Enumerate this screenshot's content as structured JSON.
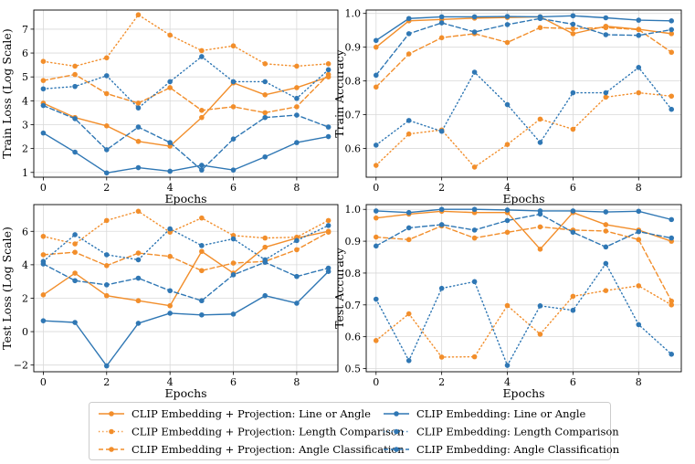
{
  "colors": {
    "orange": "#f28e2b",
    "blue": "#2f77b4",
    "grid": "#d9d9d9"
  },
  "chart_data": [
    {
      "type": "line",
      "id": "train-loss",
      "xlabel": "Epochs",
      "ylabel": "Train Loss (Log Scale)",
      "xlim": [
        -0.3,
        9.3
      ],
      "ylim": [
        0.8,
        7.8
      ],
      "xticks": [
        "0",
        "2",
        "4",
        "6",
        "8"
      ],
      "yticks": [
        "1",
        "2",
        "3",
        "4",
        "5",
        "6",
        "7"
      ],
      "x": [
        0,
        1,
        2,
        3,
        4,
        5,
        6,
        7,
        8,
        9
      ],
      "series": [
        {
          "name": "CLIP Embedding + Projection: Line or Angle",
          "color": "orange",
          "style": "solid",
          "values": [
            3.9,
            3.3,
            2.95,
            2.3,
            2.1,
            3.3,
            4.75,
            4.25,
            4.55,
            5.0
          ]
        },
        {
          "name": "CLIP Embedding + Projection: Length Comparison",
          "color": "orange",
          "style": "dotted",
          "values": [
            5.65,
            5.45,
            5.8,
            7.6,
            6.75,
            6.1,
            6.3,
            5.55,
            5.45,
            5.55
          ]
        },
        {
          "name": "CLIP Embedding + Projection: Angle Classification",
          "color": "orange",
          "style": "dashed",
          "values": [
            4.85,
            5.1,
            4.3,
            3.9,
            4.55,
            3.6,
            3.75,
            3.5,
            3.75,
            5.1
          ]
        },
        {
          "name": "CLIP Embedding: Line or Angle",
          "color": "blue",
          "style": "solid",
          "values": [
            2.65,
            1.85,
            0.98,
            1.2,
            1.05,
            1.3,
            1.1,
            1.65,
            2.25,
            2.5
          ]
        },
        {
          "name": "CLIP Embedding: Length Comparison",
          "color": "blue",
          "style": "dotted",
          "values": [
            4.5,
            4.6,
            5.05,
            3.7,
            4.8,
            5.85,
            4.8,
            4.8,
            4.1,
            5.3
          ]
        },
        {
          "name": "CLIP Embedding: Angle Classification",
          "color": "blue",
          "style": "dashed",
          "values": [
            3.8,
            3.25,
            1.95,
            2.9,
            2.25,
            1.1,
            2.4,
            3.3,
            3.4,
            2.9
          ]
        }
      ]
    },
    {
      "type": "line",
      "id": "train-accuracy",
      "xlabel": "Epochs",
      "ylabel": "Train Accuracy",
      "xlim": [
        -0.3,
        9.3
      ],
      "ylim": [
        0.515,
        1.01
      ],
      "xticks": [
        "0",
        "2",
        "4",
        "6",
        "8"
      ],
      "yticks": [
        "0.6",
        "0.7",
        "0.8",
        "0.9",
        "1.0"
      ],
      "x": [
        0,
        1,
        2,
        3,
        4,
        5,
        6,
        7,
        8,
        9
      ],
      "series": [
        {
          "name": "CLIP Embedding + Projection: Line or Angle",
          "color": "orange",
          "style": "solid",
          "values": [
            0.9,
            0.978,
            0.982,
            0.986,
            0.988,
            0.99,
            0.94,
            0.962,
            0.953,
            0.94
          ]
        },
        {
          "name": "CLIP Embedding + Projection: Length Comparison",
          "color": "orange",
          "style": "dotted",
          "values": [
            0.55,
            0.643,
            0.655,
            0.545,
            0.612,
            0.687,
            0.657,
            0.752,
            0.765,
            0.755
          ]
        },
        {
          "name": "CLIP Embedding + Projection: Angle Classification",
          "color": "orange",
          "style": "dashed",
          "values": [
            0.782,
            0.88,
            0.928,
            0.94,
            0.914,
            0.958,
            0.955,
            0.958,
            0.952,
            0.885
          ]
        },
        {
          "name": "CLIP Embedding: Line or Angle",
          "color": "blue",
          "style": "solid",
          "values": [
            0.92,
            0.985,
            0.99,
            0.99,
            0.991,
            0.99,
            0.993,
            0.987,
            0.98,
            0.978
          ]
        },
        {
          "name": "CLIP Embedding: Length Comparison",
          "color": "blue",
          "style": "dotted",
          "values": [
            0.61,
            0.683,
            0.651,
            0.826,
            0.73,
            0.618,
            0.765,
            0.765,
            0.84,
            0.716
          ]
        },
        {
          "name": "CLIP Embedding: Angle Classification",
          "color": "blue",
          "style": "dashed",
          "values": [
            0.817,
            0.94,
            0.972,
            0.945,
            0.967,
            0.985,
            0.968,
            0.937,
            0.935,
            0.952
          ]
        }
      ]
    },
    {
      "type": "line",
      "id": "test-loss",
      "xlabel": "Epochs",
      "ylabel": "Test Loss (Log Scale)",
      "xlim": [
        -0.3,
        9.3
      ],
      "ylim": [
        -2.4,
        7.6
      ],
      "xticks": [
        "0",
        "2",
        "4",
        "6",
        "8"
      ],
      "yticks": [
        "−2",
        "0",
        "2",
        "4",
        "6"
      ],
      "x": [
        0,
        1,
        2,
        3,
        4,
        5,
        6,
        7,
        8,
        9
      ],
      "series": [
        {
          "name": "CLIP Embedding + Projection: Line or Angle",
          "color": "orange",
          "style": "solid",
          "values": [
            2.2,
            3.5,
            2.15,
            1.85,
            1.55,
            4.8,
            3.5,
            5.05,
            5.6,
            6.0
          ]
        },
        {
          "name": "CLIP Embedding + Projection: Length Comparison",
          "color": "orange",
          "style": "dotted",
          "values": [
            5.7,
            5.25,
            6.65,
            7.2,
            5.95,
            6.8,
            5.75,
            5.6,
            5.65,
            6.65
          ]
        },
        {
          "name": "CLIP Embedding + Projection: Angle Classification",
          "color": "orange",
          "style": "dashed",
          "values": [
            4.6,
            4.75,
            3.95,
            4.7,
            4.5,
            3.65,
            4.1,
            4.2,
            4.9,
            5.95
          ]
        },
        {
          "name": "CLIP Embedding: Line or Angle",
          "color": "blue",
          "style": "solid",
          "values": [
            0.65,
            0.55,
            -2.05,
            0.5,
            1.1,
            1.0,
            1.05,
            2.15,
            1.7,
            3.6
          ]
        },
        {
          "name": "CLIP Embedding: Length Comparison",
          "color": "blue",
          "style": "dotted",
          "values": [
            4.2,
            5.8,
            4.6,
            4.3,
            6.15,
            5.15,
            5.55,
            4.3,
            5.45,
            6.35
          ]
        },
        {
          "name": "CLIP Embedding: Angle Classification",
          "color": "blue",
          "style": "dashed",
          "values": [
            4.05,
            3.05,
            2.8,
            3.2,
            2.45,
            1.85,
            3.4,
            4.15,
            3.3,
            3.8
          ]
        }
      ]
    },
    {
      "type": "line",
      "id": "test-accuracy",
      "xlabel": "Epochs",
      "ylabel": "Test Accuracy",
      "xlim": [
        -0.3,
        9.3
      ],
      "ylim": [
        0.49,
        1.015
      ],
      "xticks": [
        "0",
        "2",
        "4",
        "6",
        "8"
      ],
      "yticks": [
        "0.5",
        "0.6",
        "0.7",
        "0.8",
        "0.9",
        "1.0"
      ],
      "x": [
        0,
        1,
        2,
        3,
        4,
        5,
        6,
        7,
        8,
        9
      ],
      "series": [
        {
          "name": "CLIP Embedding + Projection: Line or Angle",
          "color": "orange",
          "style": "solid",
          "values": [
            0.973,
            0.985,
            0.994,
            0.99,
            0.99,
            0.875,
            0.99,
            0.952,
            0.935,
            0.9
          ]
        },
        {
          "name": "CLIP Embedding + Projection: Length Comparison",
          "color": "orange",
          "style": "dotted",
          "values": [
            0.588,
            0.672,
            0.536,
            0.537,
            0.698,
            0.608,
            0.727,
            0.745,
            0.76,
            0.7
          ]
        },
        {
          "name": "CLIP Embedding + Projection: Angle Classification",
          "color": "orange",
          "style": "dashed",
          "values": [
            0.913,
            0.905,
            0.948,
            0.91,
            0.928,
            0.945,
            0.935,
            0.932,
            0.905,
            0.712
          ]
        },
        {
          "name": "CLIP Embedding: Line or Angle",
          "color": "blue",
          "style": "solid",
          "values": [
            0.995,
            0.99,
            1.0,
            1.0,
            0.998,
            0.995,
            0.995,
            0.992,
            0.994,
            0.968
          ]
        },
        {
          "name": "CLIP Embedding: Length Comparison",
          "color": "blue",
          "style": "dotted",
          "values": [
            0.718,
            0.525,
            0.752,
            0.773,
            0.51,
            0.697,
            0.683,
            0.83,
            0.638,
            0.545
          ]
        },
        {
          "name": "CLIP Embedding: Angle Classification",
          "color": "blue",
          "style": "dashed",
          "values": [
            0.885,
            0.942,
            0.952,
            0.935,
            0.965,
            0.985,
            0.928,
            0.882,
            0.93,
            0.91
          ]
        }
      ]
    }
  ],
  "legend": {
    "position": "bottom-center",
    "entries": [
      {
        "label": "CLIP Embedding + Projection: Line or Angle",
        "color": "orange",
        "style": "solid"
      },
      {
        "label": "CLIP Embedding + Projection: Length Comparison",
        "color": "orange",
        "style": "dotted"
      },
      {
        "label": "CLIP Embedding + Projection: Angle Classification",
        "color": "orange",
        "style": "dashed"
      },
      {
        "label": "CLIP Embedding: Line or Angle",
        "color": "blue",
        "style": "solid"
      },
      {
        "label": "CLIP Embedding: Length Comparison",
        "color": "blue",
        "style": "dotted"
      },
      {
        "label": "CLIP Embedding: Angle Classification",
        "color": "blue",
        "style": "dashed"
      }
    ]
  }
}
